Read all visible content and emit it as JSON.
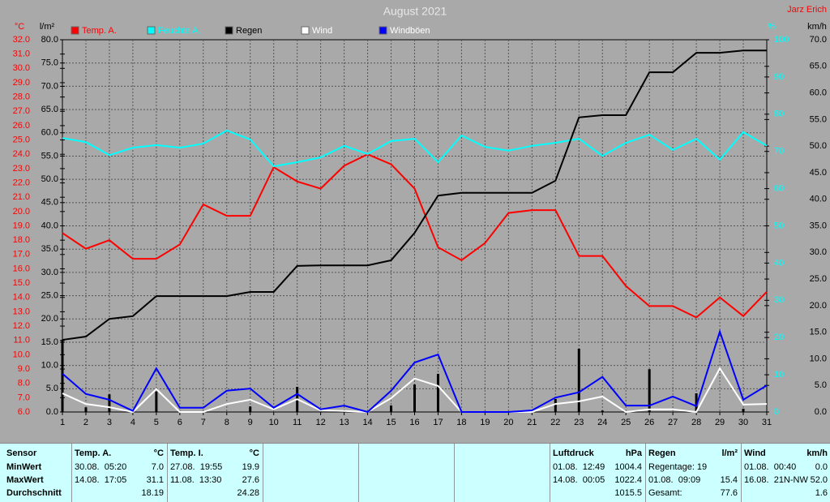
{
  "chart_data": {
    "type": "line",
    "title": "August 2021",
    "author": "Jarz Erich",
    "x": [
      1,
      2,
      3,
      4,
      5,
      6,
      7,
      8,
      9,
      10,
      11,
      12,
      13,
      14,
      15,
      16,
      17,
      18,
      19,
      20,
      21,
      22,
      23,
      24,
      25,
      26,
      27,
      28,
      29,
      30,
      31
    ],
    "xlim": [
      1,
      31
    ],
    "axes": [
      {
        "label": "°C",
        "color": "#ff0000",
        "lim": [
          6,
          32
        ],
        "ticks": [
          {
            "value": 6,
            "label": "6.0"
          },
          {
            "value": 7,
            "label": "7.0"
          },
          {
            "value": 8,
            "label": "8.0"
          },
          {
            "value": 9,
            "label": "9.0"
          },
          {
            "value": 10,
            "label": "10.0"
          },
          {
            "value": 11,
            "label": "11.0"
          },
          {
            "value": 12,
            "label": "12.0"
          },
          {
            "value": 13,
            "label": "13.0"
          },
          {
            "value": 14,
            "label": "14.0"
          },
          {
            "value": 15,
            "label": "15.0"
          },
          {
            "value": 16,
            "label": "16.0"
          },
          {
            "value": 17,
            "label": "17.0"
          },
          {
            "value": 18,
            "label": "18.0"
          },
          {
            "value": 19,
            "label": "19.0"
          },
          {
            "value": 20,
            "label": "20.0"
          },
          {
            "value": 21,
            "label": "21.0"
          },
          {
            "value": 22,
            "label": "22.0"
          },
          {
            "value": 23,
            "label": "23.0"
          },
          {
            "value": 24,
            "label": "24.0"
          },
          {
            "value": 25,
            "label": "25.0"
          },
          {
            "value": 26,
            "label": "26.0"
          },
          {
            "value": 27,
            "label": "27.0"
          },
          {
            "value": 28,
            "label": "28.0"
          },
          {
            "value": 29,
            "label": "29.0"
          },
          {
            "value": 30,
            "label": "30.0"
          },
          {
            "value": 31,
            "label": "31.0"
          },
          {
            "value": 32,
            "label": "32.0"
          }
        ]
      },
      {
        "label": "l/m²",
        "color": "#000000",
        "grid": true,
        "lim": [
          0,
          80
        ],
        "ticks": [
          {
            "value": 0,
            "label": "0.0"
          },
          {
            "value": 5,
            "label": "5.0"
          },
          {
            "value": 10,
            "label": "10.0"
          },
          {
            "value": 15,
            "label": "15.0"
          },
          {
            "value": 20,
            "label": "20.0"
          },
          {
            "value": 25,
            "label": "25.0"
          },
          {
            "value": 30,
            "label": "30.0"
          },
          {
            "value": 35,
            "label": "35.0"
          },
          {
            "value": 40,
            "label": "40.0"
          },
          {
            "value": 45,
            "label": "45.0"
          },
          {
            "value": 50,
            "label": "50.0"
          },
          {
            "value": 55,
            "label": "55.0"
          },
          {
            "value": 60,
            "label": "60.0"
          },
          {
            "value": 65,
            "label": "65.0"
          },
          {
            "value": 70,
            "label": "70.0"
          },
          {
            "value": 75,
            "label": "75.0"
          },
          {
            "value": 80,
            "label": "80.0"
          }
        ]
      },
      {
        "label": "%",
        "color": "#00ffff",
        "lim": [
          0,
          100
        ],
        "ticks": [
          0,
          10,
          20,
          30,
          40,
          50,
          60,
          70,
          80,
          90,
          100
        ]
      },
      {
        "label": "km/h",
        "color": "#000000",
        "lim": [
          0,
          70
        ],
        "ticks": [
          {
            "value": 0,
            "label": "0.0"
          },
          {
            "value": 5,
            "label": "5.0"
          },
          {
            "value": 10,
            "label": "10.0"
          },
          {
            "value": 15,
            "label": "15.0"
          },
          {
            "value": 20,
            "label": "20.0"
          },
          {
            "value": 25,
            "label": "25.0"
          },
          {
            "value": 30,
            "label": "30.0"
          },
          {
            "value": 35,
            "label": "35.0"
          },
          {
            "value": 40,
            "label": "40.0"
          },
          {
            "value": 45,
            "label": "45.0"
          },
          {
            "value": 50,
            "label": "50.0"
          },
          {
            "value": 55,
            "label": "55.0"
          },
          {
            "value": 60,
            "label": "60.0"
          },
          {
            "value": 65,
            "label": "65.0"
          },
          {
            "value": 70,
            "label": "70.0"
          }
        ]
      }
    ],
    "series": [
      {
        "name": "Temp. A.",
        "color": "#ff0000",
        "legend_text_color": "#ff0000",
        "axis": 0,
        "values": [
          18.5,
          17.4,
          18.0,
          16.7,
          16.7,
          17.7,
          20.5,
          19.7,
          19.7,
          23.1,
          22.1,
          21.6,
          23.2,
          24.0,
          23.3,
          21.6,
          17.5,
          16.6,
          17.8,
          19.9,
          20.1,
          20.1,
          16.9,
          16.9,
          14.8,
          13.4,
          13.4,
          12.6,
          14.0,
          12.7,
          14.4
        ]
      },
      {
        "name": "Feuchte A.",
        "color": "#00ffff",
        "legend_text_color": "#00ffff",
        "axis": 2,
        "values": [
          73.6,
          72.5,
          69,
          71,
          71.7,
          71,
          72.1,
          75.6,
          73.2,
          66,
          67.1,
          68.4,
          71.5,
          69.3,
          72.8,
          73.4,
          67.1,
          74.3,
          71.2,
          70.2,
          71.5,
          72.3,
          73.4,
          68.8,
          72.3,
          74.5,
          70.4,
          73.4,
          67.8,
          75.2,
          71.5
        ]
      },
      {
        "name": "Regen",
        "color": "#000000",
        "legend_text_color": "#000000",
        "axis": 1,
        "values": [
          15.5,
          16.2,
          20.0,
          20.6,
          24.9,
          24.9,
          24.9,
          24.9,
          25.8,
          25.8,
          31.4,
          31.5,
          31.5,
          31.5,
          32.6,
          38.5,
          46.5,
          47.1,
          47.1,
          47.1,
          47.1,
          49.7,
          63.3,
          63.8,
          63.8,
          73.0,
          73.0,
          77.2,
          77.2,
          77.7,
          77.7
        ]
      },
      {
        "name": "Wind",
        "color": "#ffffff",
        "legend_text_color": "#ffffff",
        "axis": 3,
        "values": [
          3.5,
          1.5,
          0.9,
          0,
          4.3,
          0,
          0,
          1.5,
          2.3,
          0.5,
          2.4,
          0.3,
          0.2,
          0,
          2.6,
          6.3,
          4.9,
          0,
          0,
          0,
          0,
          1.5,
          2.0,
          2.9,
          0,
          0.5,
          0.5,
          0,
          8.2,
          1.4,
          1.5
        ]
      },
      {
        "name": "Windböen",
        "color": "#0000ff",
        "legend_text_color": "#ffffff",
        "axis": 3,
        "values": [
          7.2,
          3.4,
          2.3,
          0.2,
          8.2,
          0.8,
          0.8,
          4.0,
          4.4,
          0.8,
          3.4,
          0.5,
          1.2,
          0,
          4.0,
          9.3,
          10.8,
          0,
          0,
          0,
          0.3,
          2.7,
          3.7,
          6.6,
          1.2,
          1.2,
          2.9,
          1.1,
          15.1,
          2.3,
          5.0
        ]
      }
    ],
    "bars": {
      "color": "#000000",
      "axis": 1,
      "values": [
        15.5,
        1.0,
        3.8,
        0,
        4.4,
        0,
        0,
        0,
        1.2,
        0,
        5.4,
        0,
        0,
        0,
        1.4,
        5.9,
        8.2,
        0,
        0,
        0,
        0,
        2.8,
        13.6,
        0.3,
        0,
        9.2,
        0,
        4.0,
        0,
        0.7,
        0
      ]
    }
  },
  "table": {
    "row_labels": [
      "Sensor",
      "MinWert",
      "MaxWert",
      "Durchschnitt"
    ],
    "columns": [
      {
        "header": "Temp. A.",
        "unit": "°C",
        "rows": [
          [
            "30.08.  05:20",
            "7.0"
          ],
          [
            "14.08.  17:05",
            "31.1"
          ],
          [
            null,
            "18.19"
          ]
        ]
      },
      {
        "header": "Temp. I.",
        "unit": "°C",
        "rows": [
          [
            "27.08.  19:55",
            "19.9"
          ],
          [
            "11.08.  13:30",
            "27.6"
          ],
          [
            null,
            "24.28"
          ]
        ]
      },
      {
        "header": "Luftdruck",
        "unit": "hPa",
        "rows": [
          [
            "01.08.  12:49",
            "1004.4"
          ],
          [
            "14.08.  00:05",
            "1022.4"
          ],
          [
            null,
            "1015.5"
          ]
        ]
      },
      {
        "header": "Regen",
        "unit": "l/m²",
        "rows": [
          [
            "Regentage: 19",
            null
          ],
          [
            "01.08.  09:09",
            "15.4"
          ],
          [
            "Gesamt:",
            "77.6"
          ]
        ]
      },
      {
        "header": "Wind",
        "unit": "km/h",
        "rows": [
          [
            "01.08.  00:40",
            "0.0"
          ],
          [
            "16.08.  21N-NW",
            "52.0"
          ],
          [
            null,
            "1.6"
          ]
        ]
      }
    ]
  }
}
